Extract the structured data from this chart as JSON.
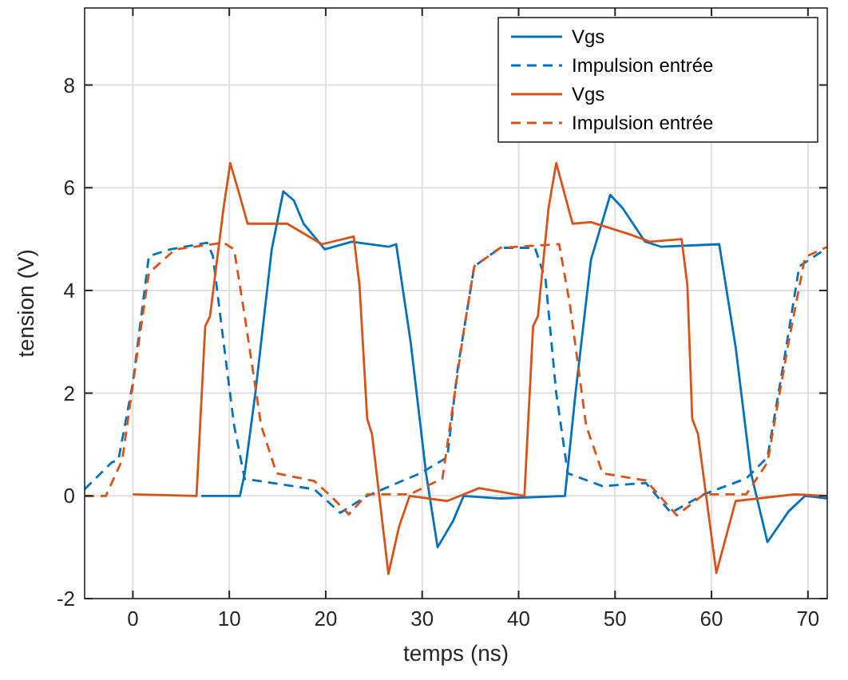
{
  "chart_data": {
    "type": "line",
    "xlabel": "temps (ns)",
    "ylabel": "tension (V)",
    "xlim": [
      -5,
      72
    ],
    "ylim": [
      -2,
      9.5
    ],
    "xticks": [
      0,
      10,
      20,
      30,
      40,
      50,
      60,
      70
    ],
    "yticks": [
      -2,
      0,
      2,
      4,
      6,
      8
    ],
    "grid": true,
    "legend": "top right",
    "marker": "none",
    "series": [
      {
        "name": "Vgs",
        "color": "#0072bd",
        "line_style": "solid",
        "x": [
          7.1,
          11.1,
          11.6,
          12.7,
          14.4,
          15.6,
          16.7,
          17.7,
          19.9,
          22.7,
          26.5,
          27.3,
          28.8,
          30.4,
          31.6,
          33.2,
          34.3,
          38.1,
          44.8,
          45.9,
          47.5,
          49.5,
          50.8,
          53.1,
          54.8,
          60.8,
          62.5,
          64.1,
          65.8,
          68,
          69.7,
          72
        ],
        "values": [
          0,
          0,
          0.44,
          2,
          4.8,
          5.93,
          5.75,
          5.3,
          4.8,
          4.95,
          4.85,
          4.9,
          3,
          0.44,
          -1,
          -0.49,
          0,
          -0.05,
          0,
          2,
          4.6,
          5.86,
          5.6,
          4.95,
          4.85,
          4.9,
          2.9,
          0.44,
          -0.9,
          -0.3,
          0,
          -0.05
        ]
      },
      {
        "name": "Impulsion entrée",
        "color": "#0072bd",
        "line_style": "dashed",
        "x": [
          -5,
          -2.2,
          -1.5,
          0,
          1.66,
          3.9,
          7.7,
          8.3,
          9.4,
          10.5,
          11.6,
          18.8,
          21.5,
          24.3,
          29.8,
          32.6,
          33.7,
          35.4,
          38.1,
          41.7,
          42.8,
          43.9,
          45.1,
          48.7,
          53.2,
          55.8,
          59.2,
          63.6,
          65.8,
          67.4,
          69.1,
          71.3,
          72
        ],
        "values": [
          0.13,
          0.65,
          0.7,
          2.2,
          4.67,
          4.8,
          4.93,
          4.67,
          3,
          1.37,
          0.33,
          0.13,
          -0.33,
          0,
          0.44,
          0.75,
          2.5,
          4.47,
          4.83,
          4.83,
          4.2,
          2,
          0.44,
          0.19,
          0.25,
          -0.33,
          0.03,
          0.34,
          0.75,
          2.5,
          4.47,
          4.74,
          4.8
        ]
      },
      {
        "name": "Vgs",
        "color": "#d95319",
        "line_style": "solid",
        "x": [
          0,
          6.6,
          7.5,
          8,
          9.4,
          10.1,
          11,
          11.9,
          13.8,
          16,
          19.6,
          22.9,
          23.5,
          24.3,
          24.8,
          26.5,
          27.6,
          28.7,
          32.6,
          35.9,
          40.6,
          41.5,
          42,
          43.1,
          43.9,
          45.6,
          47.5,
          51.4,
          53.6,
          56.9,
          57.5,
          58,
          58.6,
          60.5,
          62.5,
          68.6,
          72
        ],
        "values": [
          0.03,
          0,
          3.3,
          3.5,
          5.6,
          6.48,
          5.9,
          5.3,
          5.3,
          5.3,
          4.9,
          5.05,
          4.1,
          1.5,
          1.2,
          -1.52,
          -0.6,
          0,
          -0.1,
          0.15,
          0,
          3.3,
          3.5,
          5.6,
          6.48,
          5.3,
          5.33,
          5.1,
          4.95,
          5,
          4.1,
          1.5,
          1.2,
          -1.5,
          -0.1,
          0.03,
          0
        ]
      },
      {
        "name": "Impulsion entrée",
        "color": "#d95319",
        "line_style": "dashed",
        "x": [
          -5,
          -2.8,
          -1.1,
          0.55,
          1.66,
          4.4,
          9.4,
          10.5,
          11.6,
          13.3,
          14.9,
          18.8,
          20.5,
          22.4,
          24.3,
          28.7,
          32.1,
          34.3,
          35.4,
          38.1,
          44.2,
          45.3,
          47,
          48.7,
          53.2,
          56.4,
          59.2,
          63.6,
          65.8,
          68,
          69.7,
          72
        ],
        "values": [
          0,
          0,
          0.7,
          2.9,
          4.34,
          4.8,
          4.93,
          4.8,
          3.5,
          1.37,
          0.44,
          0.29,
          0,
          -0.36,
          0.03,
          0.03,
          0.34,
          3.2,
          4.47,
          4.83,
          4.9,
          3.75,
          1.37,
          0.44,
          0.3,
          -0.38,
          0.03,
          0.03,
          0.65,
          3,
          4.65,
          4.85
        ]
      }
    ]
  }
}
